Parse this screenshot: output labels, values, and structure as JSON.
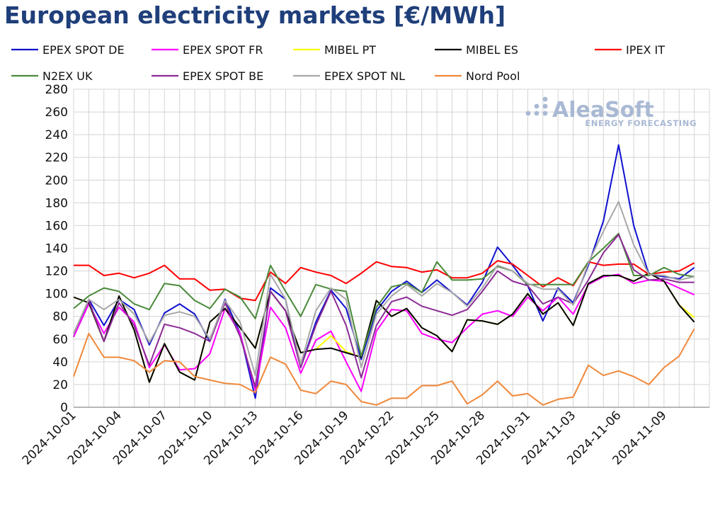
{
  "title": "European electricity markets [€/MWh]",
  "watermark": {
    "main": "AleaSoft",
    "sub": "ENERGY FORECASTING"
  },
  "chart_data": {
    "type": "line",
    "title": "European electricity markets [€/MWh]",
    "xlabel": "",
    "ylabel": "",
    "ylim": [
      0,
      280
    ],
    "y_ticks": [
      0,
      20,
      40,
      60,
      80,
      100,
      120,
      140,
      160,
      180,
      200,
      220,
      240,
      260,
      280
    ],
    "grid": true,
    "legend_position": "top",
    "x": [
      "2024-10-01",
      "2024-10-02",
      "2024-10-03",
      "2024-10-04",
      "2024-10-05",
      "2024-10-06",
      "2024-10-07",
      "2024-10-08",
      "2024-10-09",
      "2024-10-10",
      "2024-10-11",
      "2024-10-12",
      "2024-10-13",
      "2024-10-14",
      "2024-10-15",
      "2024-10-16",
      "2024-10-17",
      "2024-10-18",
      "2024-10-19",
      "2024-10-20",
      "2024-10-21",
      "2024-10-22",
      "2024-10-23",
      "2024-10-24",
      "2024-10-25",
      "2024-10-26",
      "2024-10-27",
      "2024-10-28",
      "2024-10-29",
      "2024-10-30",
      "2024-10-31",
      "2024-11-01",
      "2024-11-02",
      "2024-11-03",
      "2024-11-04",
      "2024-11-05",
      "2024-11-06",
      "2024-11-07",
      "2024-11-08",
      "2024-11-09",
      "2024-11-10",
      "2024-11-11"
    ],
    "x_tick_labels": [
      "2024-10-01",
      "2024-10-04",
      "2024-10-07",
      "2024-10-10",
      "2024-10-13",
      "2024-10-16",
      "2024-10-19",
      "2024-10-22",
      "2024-10-25",
      "2024-10-28",
      "2024-10-31",
      "2024-11-03",
      "2024-11-06",
      "2024-11-09"
    ],
    "series": [
      {
        "name": "EPEX SPOT DE",
        "color": "#1010d0",
        "values": [
          62,
          95,
          72,
          95,
          86,
          55,
          83,
          91,
          82,
          58,
          95,
          65,
          8,
          105,
          95,
          35,
          75,
          103,
          87,
          42,
          85,
          102,
          111,
          101,
          112,
          101,
          90,
          110,
          141,
          125,
          107,
          76,
          105,
          92,
          125,
          164,
          231,
          160,
          117,
          115,
          113,
          123
        ]
      },
      {
        "name": "EPEX SPOT FR",
        "color": "#ff00ff",
        "values": [
          62,
          91,
          65,
          88,
          75,
          35,
          55,
          33,
          34,
          47,
          87,
          65,
          15,
          88,
          70,
          30,
          59,
          67,
          40,
          14,
          67,
          86,
          85,
          65,
          60,
          57,
          70,
          82,
          85,
          80,
          97,
          85,
          97,
          82,
          108,
          115,
          117,
          109,
          112,
          111,
          105,
          99
        ]
      },
      {
        "name": "MIBEL PT",
        "color": "#ffff00",
        "values": [
          97,
          92,
          58,
          98,
          68,
          22,
          56,
          31,
          24,
          75,
          87,
          70,
          52,
          102,
          85,
          48,
          51,
          63,
          49,
          44,
          94,
          80,
          87,
          70,
          63,
          49,
          77,
          76,
          73,
          82,
          100,
          82,
          92,
          72,
          109,
          116,
          116,
          111,
          118,
          111,
          90,
          79
        ]
      },
      {
        "name": "MIBEL ES",
        "color": "#000000",
        "values": [
          97,
          92,
          58,
          98,
          68,
          22,
          56,
          31,
          24,
          75,
          87,
          70,
          52,
          102,
          85,
          48,
          51,
          52,
          48,
          44,
          94,
          80,
          87,
          70,
          63,
          49,
          77,
          76,
          73,
          82,
          100,
          82,
          92,
          72,
          109,
          116,
          116,
          111,
          118,
          111,
          90,
          75
        ]
      },
      {
        "name": "IPEX IT",
        "color": "#ff0000",
        "values": [
          125,
          125,
          116,
          118,
          114,
          118,
          125,
          113,
          113,
          103,
          104,
          96,
          94,
          119,
          109,
          123,
          119,
          116,
          109,
          118,
          128,
          124,
          123,
          119,
          121,
          114,
          114,
          118,
          129,
          126,
          116,
          106,
          114,
          107,
          128,
          125,
          126,
          126,
          117,
          119,
          120,
          127
        ]
      },
      {
        "name": "N2EX UK",
        "color": "#4a8a3a",
        "values": [
          87,
          98,
          105,
          102,
          91,
          86,
          109,
          107,
          94,
          87,
          104,
          97,
          78,
          125,
          102,
          80,
          108,
          104,
          102,
          45,
          88,
          106,
          109,
          101,
          128,
          112,
          112,
          113,
          124,
          120,
          108,
          108,
          108,
          108,
          128,
          140,
          153,
          116,
          116,
          123,
          117,
          115
        ]
      },
      {
        "name": "EPEX SPOT BE",
        "color": "#8b2b96",
        "values": [
          65,
          94,
          58,
          92,
          72,
          37,
          73,
          70,
          65,
          58,
          92,
          62,
          18,
          102,
          85,
          35,
          72,
          102,
          72,
          26,
          72,
          93,
          97,
          89,
          85,
          81,
          86,
          102,
          120,
          111,
          107,
          91,
          97,
          91,
          112,
          136,
          152,
          121,
          112,
          113,
          110,
          110
        ]
      },
      {
        "name": "EPEX SPOT NL",
        "color": "#a8a8a8",
        "values": [
          65,
          95,
          86,
          95,
          82,
          57,
          81,
          84,
          80,
          60,
          94,
          75,
          28,
          117,
          95,
          38,
          85,
          105,
          95,
          35,
          82,
          98,
          108,
          98,
          109,
          101,
          89,
          105,
          125,
          120,
          109,
          104,
          104,
          90,
          127,
          155,
          181,
          143,
          117,
          116,
          112,
          115
        ]
      },
      {
        "name": "Nord Pool",
        "color": "#f0883a",
        "values": [
          27,
          65,
          44,
          44,
          41,
          31,
          41,
          40,
          27,
          24,
          21,
          20,
          13,
          44,
          38,
          15,
          12,
          23,
          20,
          5,
          2,
          8,
          8,
          19,
          19,
          23,
          3,
          11,
          23,
          10,
          12,
          2,
          7,
          9,
          37,
          28,
          32,
          27,
          20,
          35,
          45,
          69
        ]
      }
    ]
  }
}
